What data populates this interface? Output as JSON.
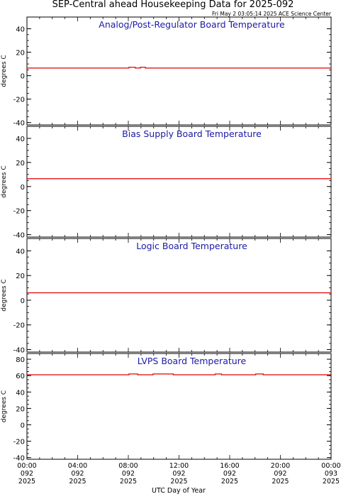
{
  "header": {
    "title": "SEP-Central ahead Housekeeping Data for 2025-092",
    "timestamp": "Fri May  2 03:05:14 2025 ACE Science Center"
  },
  "x_axis": {
    "label": "UTC Day of Year",
    "ticks": [
      {
        "time": "00:00",
        "day": "092",
        "year": "2025"
      },
      {
        "time": "04:00",
        "day": "092",
        "year": "2025"
      },
      {
        "time": "08:00",
        "day": "092",
        "year": "2025"
      },
      {
        "time": "12:00",
        "day": "092",
        "year": "2025"
      },
      {
        "time": "16:00",
        "day": "092",
        "year": "2025"
      },
      {
        "time": "20:00",
        "day": "092",
        "year": "2025"
      },
      {
        "time": "00:00",
        "day": "093",
        "year": "2025"
      }
    ]
  },
  "colors": {
    "title": "#000000",
    "panel_title": "#1a1aa6",
    "series": "#e00000",
    "axes": "#000000",
    "background": "#ffffff"
  },
  "chart_data": [
    {
      "type": "line",
      "title": "Analog/Post-Regulator Board Temperature",
      "ylabel": "degrees C",
      "xlabel": "UTC Day of Year",
      "xlim_hours": [
        0,
        24
      ],
      "ylim": [
        -42,
        50
      ],
      "yticks": [
        -40,
        -20,
        0,
        20,
        40
      ],
      "grid": false,
      "series": [
        {
          "x": [
            0,
            8.0,
            8.05,
            8.5,
            8.55,
            8.9,
            8.95,
            9.3,
            9.35,
            24
          ],
          "y": [
            6.5,
            6.5,
            7.2,
            7.2,
            6.5,
            6.5,
            7.2,
            7.2,
            6.5,
            6.5
          ]
        }
      ]
    },
    {
      "type": "line",
      "title": "Bias Supply Board Temperature",
      "ylabel": "degrees C",
      "xlabel": "UTC Day of Year",
      "xlim_hours": [
        0,
        24
      ],
      "ylim": [
        -42,
        50
      ],
      "yticks": [
        -40,
        -20,
        0,
        20,
        40
      ],
      "grid": false,
      "series": [
        {
          "x": [
            0,
            24
          ],
          "y": [
            6.5,
            6.5
          ]
        }
      ]
    },
    {
      "type": "line",
      "title": "Logic Board Temperature",
      "ylabel": "degrees C",
      "xlabel": "UTC Day of Year",
      "xlim_hours": [
        0,
        24
      ],
      "ylim": [
        -42,
        50
      ],
      "yticks": [
        -40,
        -20,
        0,
        20,
        40
      ],
      "grid": false,
      "series": [
        {
          "x": [
            0,
            24
          ],
          "y": [
            6.0,
            6.0
          ]
        }
      ]
    },
    {
      "type": "line",
      "title": "LVPS Board Temperature",
      "ylabel": "degrees C",
      "xlabel": "UTC Day of Year",
      "xlim_hours": [
        0,
        24
      ],
      "ylim": [
        -42,
        87
      ],
      "yticks": [
        -40,
        -20,
        0,
        20,
        40,
        60,
        80
      ],
      "grid": false,
      "series": [
        {
          "x": [
            0,
            8.0,
            8.05,
            8.7,
            8.75,
            9.9,
            9.95,
            11.5,
            11.55,
            14.8,
            14.85,
            15.3,
            15.35,
            18.0,
            18.05,
            18.6,
            18.65,
            19.5,
            19.55,
            24
          ],
          "y": [
            61,
            61,
            62,
            62,
            61,
            61,
            62,
            62,
            61,
            61,
            62,
            62,
            61,
            61,
            62,
            62,
            61,
            61,
            61,
            61
          ]
        }
      ]
    }
  ]
}
